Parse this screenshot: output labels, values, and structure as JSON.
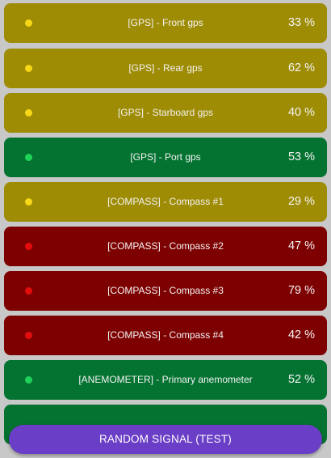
{
  "colors": {
    "background": "#c8c8c8",
    "yellow_row": "#9f8c05",
    "green_row": "#047331",
    "red_row": "#7e0101",
    "yellow_dot": "#f7d817",
    "green_dot": "#1fd35a",
    "red_dot": "#e40c0c",
    "button": "#6a3ec6"
  },
  "signals": [
    {
      "label": "[GPS] - Front gps",
      "value": "33 %",
      "status": "yellow"
    },
    {
      "label": "[GPS] - Rear gps",
      "value": "62 %",
      "status": "yellow"
    },
    {
      "label": "[GPS] - Starboard gps",
      "value": "40 %",
      "status": "yellow"
    },
    {
      "label": "[GPS] - Port gps",
      "value": "53 %",
      "status": "green"
    },
    {
      "label": "[COMPASS] - Compass #1",
      "value": "29 %",
      "status": "yellow"
    },
    {
      "label": "[COMPASS] - Compass #2",
      "value": "47 %",
      "status": "red"
    },
    {
      "label": "[COMPASS] - Compass #3",
      "value": "79 %",
      "status": "red"
    },
    {
      "label": "[COMPASS] - Compass #4",
      "value": "42 %",
      "status": "red"
    },
    {
      "label": "[ANEMOMETER] - Primary anemometer",
      "value": "52 %",
      "status": "green"
    },
    {
      "label": "",
      "value": "",
      "status": "green"
    }
  ],
  "button": {
    "label": "RANDOM SIGNAL (TEST)"
  }
}
